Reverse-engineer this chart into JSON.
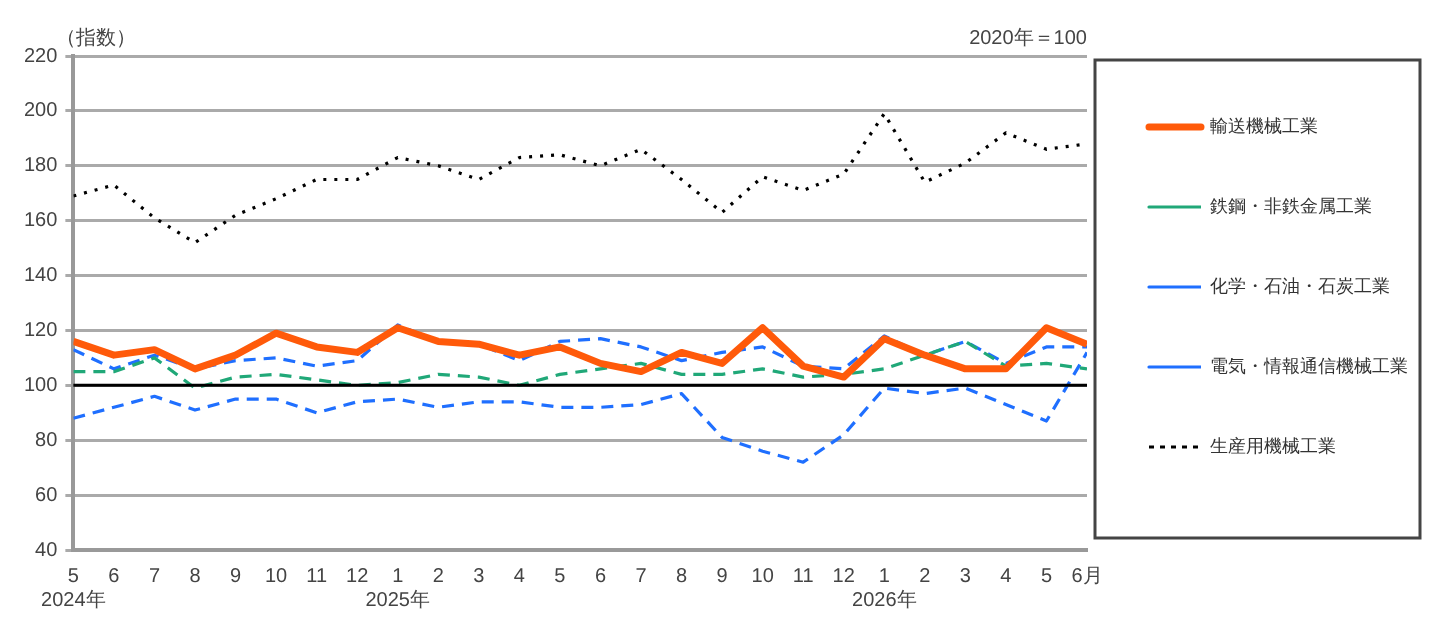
{
  "chart_data": {
    "type": "line",
    "subtitle": "2020年＝100",
    "ylabel": "（指数）",
    "x": [
      "2024-05",
      "2024-06",
      "2024-07",
      "2024-08",
      "2024-09",
      "2024-10",
      "2024-11",
      "2024-12",
      "2025-01",
      "2025-02",
      "2025-03",
      "2025-04",
      "2025-05",
      "2025-06",
      "2025-07",
      "2025-08",
      "2025-09",
      "2025-10",
      "2025-11",
      "2025-12",
      "2026-01",
      "2026-02",
      "2026-03",
      "2026-04",
      "2026-05",
      "2026-06"
    ],
    "series": [
      {
        "name": "輸送機械工業",
        "color": "#ff5a0a",
        "line_style": "solid",
        "values": [
          116,
          111,
          113,
          106,
          111,
          119,
          114,
          112,
          121,
          116,
          115,
          111,
          114,
          108,
          105,
          112,
          108,
          121,
          107,
          103,
          117,
          111,
          106,
          106,
          121,
          115
        ]
      },
      {
        "name": "鉄鋼・非鉄金属工業",
        "color": "#20a878",
        "line_style": "dashed",
        "values": [
          105,
          105,
          110,
          99,
          103,
          104,
          102,
          100,
          101,
          104,
          103,
          100,
          104,
          106,
          108,
          104,
          104,
          106,
          103,
          104,
          106,
          111,
          116,
          107,
          108,
          106
        ]
      },
      {
        "name": "化学・石油・石炭工業",
        "color": "#1f6fff",
        "line_style": "dashed",
        "values": [
          88,
          92,
          96,
          91,
          95,
          95,
          90,
          94,
          95,
          92,
          94,
          94,
          92,
          92,
          93,
          97,
          81,
          76,
          72,
          82,
          99,
          97,
          99,
          93,
          87,
          112
        ]
      },
      {
        "name": "電気・情報通信機械工業",
        "color": "#1f6fff",
        "line_style": "dashed",
        "values": [
          113,
          106,
          111,
          106,
          109,
          110,
          107,
          109,
          122,
          116,
          115,
          109,
          116,
          117,
          114,
          109,
          112,
          114,
          107,
          106,
          118,
          111,
          116,
          108,
          114,
          114
        ]
      },
      {
        "name": "生産用機械工業",
        "color": "#000000",
        "line_style": "dotted",
        "values": [
          169,
          173,
          161,
          152,
          162,
          168,
          175,
          175,
          183,
          180,
          175,
          183,
          184,
          180,
          186,
          175,
          163,
          176,
          171,
          177,
          199,
          174,
          181,
          192,
          186,
          188
        ]
      }
    ],
    "ylim": [
      40,
      220
    ],
    "yticks": [
      40,
      60,
      80,
      100,
      120,
      140,
      160,
      180,
      200,
      220
    ],
    "xlim": [
      "2024-05",
      "2026-06"
    ],
    "xticks": [
      {
        "value": "2024-05",
        "label": "5\n2024年"
      },
      {
        "value": "2024-06",
        "label": "6"
      },
      {
        "value": "2024-07",
        "label": "7"
      },
      {
        "value": "2024-08",
        "label": "8"
      },
      {
        "value": "2024-09",
        "label": "9"
      },
      {
        "value": "2024-10",
        "label": "10"
      },
      {
        "value": "2024-11",
        "label": "11"
      },
      {
        "value": "2024-12",
        "label": "12"
      },
      {
        "value": "2025-01",
        "label": "1\n2025年"
      },
      {
        "value": "2025-02",
        "label": "2"
      },
      {
        "value": "2025-03",
        "label": "3"
      },
      {
        "value": "2025-04",
        "label": "4"
      },
      {
        "value": "2025-05",
        "label": "5"
      },
      {
        "value": "2025-06",
        "label": "6"
      },
      {
        "value": "2025-07",
        "label": "7"
      },
      {
        "value": "2025-08",
        "label": "8"
      },
      {
        "value": "2025-09",
        "label": "9"
      },
      {
        "value": "2025-10",
        "label": "10"
      },
      {
        "value": "2025-11",
        "label": "11"
      },
      {
        "value": "2025-12",
        "label": "12"
      },
      {
        "value": "2026-01",
        "label": "1\n2026年"
      },
      {
        "value": "2026-02",
        "label": "2"
      },
      {
        "value": "2026-03",
        "label": "3"
      },
      {
        "value": "2026-04",
        "label": "4"
      },
      {
        "value": "2026-05",
        "label": "5"
      },
      {
        "value": "2026-06",
        "label": "6月"
      }
    ],
    "ref_lines": [
      {
        "axis": "y",
        "value": 100,
        "color": "#000000"
      }
    ],
    "grid": "y",
    "legend": "right",
    "marker": "none"
  }
}
